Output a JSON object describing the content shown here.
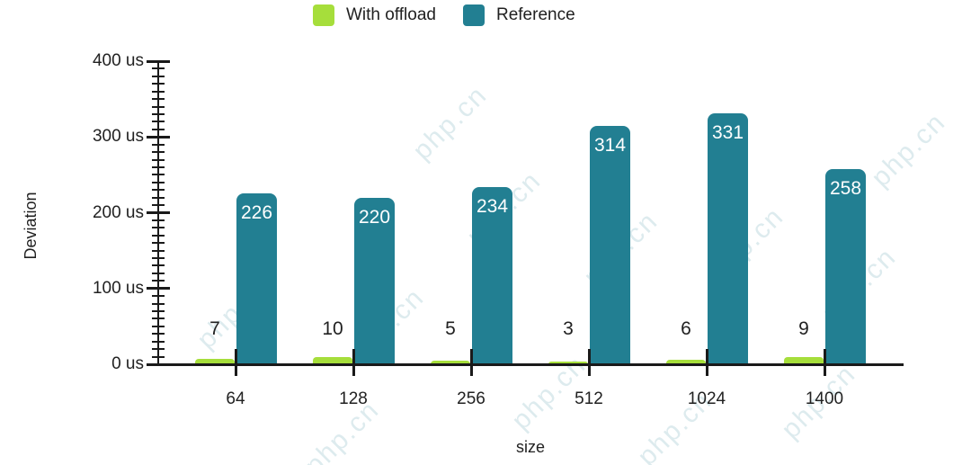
{
  "chart_data": {
    "type": "bar",
    "title": "",
    "xlabel": "size",
    "ylabel": "Deviation",
    "categories": [
      "64",
      "128",
      "256",
      "512",
      "1024",
      "1400"
    ],
    "series": [
      {
        "name": "With offload",
        "color": "#a6de3b",
        "values": [
          7,
          10,
          5,
          3,
          6,
          9
        ],
        "label_color": "#212121",
        "label_placement": "above"
      },
      {
        "name": "Reference",
        "color": "#227f92",
        "values": [
          226,
          220,
          234,
          314,
          331,
          258
        ],
        "label_color": "#ffffff",
        "label_placement": "inside-top"
      }
    ],
    "ylim": [
      0,
      400
    ],
    "y_unit": "us",
    "y_major_tick_step": 100,
    "y_minor_tick_step": 10,
    "y_tick_labels": [
      "0 us",
      "100 us",
      "200 us",
      "300 us",
      "400 us"
    ],
    "grid": "off",
    "legend_position": "top-center"
  },
  "watermark": {
    "text": "php.cn"
  }
}
